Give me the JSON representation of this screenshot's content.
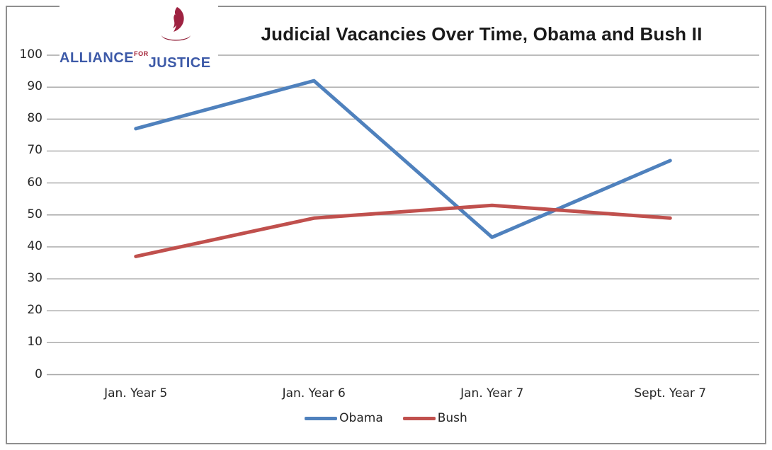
{
  "logo": {
    "word1": "ALLIANCE",
    "word2": "FOR",
    "word3": "JUSTICE",
    "text_color": "#3d5aa8",
    "flame_color": "#9e2241",
    "saucer_color": "#8e1a33"
  },
  "chart_data": {
    "type": "line",
    "title": "Judicial Vacancies Over Time, Obama and Bush II",
    "categories": [
      "Jan. Year 5",
      "Jan. Year 6",
      "Jan. Year 7",
      "Sept. Year 7"
    ],
    "series": [
      {
        "name": "Obama",
        "color": "#4F81BD",
        "values": [
          77,
          92,
          43,
          67
        ]
      },
      {
        "name": "Bush",
        "color": "#C0504D",
        "values": [
          37,
          49,
          53,
          49
        ]
      }
    ],
    "xlabel": "",
    "ylabel": "",
    "ylim": [
      0,
      100
    ],
    "yticks": [
      0,
      10,
      20,
      30,
      40,
      50,
      60,
      70,
      80,
      90,
      100
    ],
    "grid": true,
    "gridline_color": "#a6a6a6",
    "axis_label_color": "#262626",
    "title_color": "#1a1a1a",
    "legend_position": "bottom-center"
  }
}
